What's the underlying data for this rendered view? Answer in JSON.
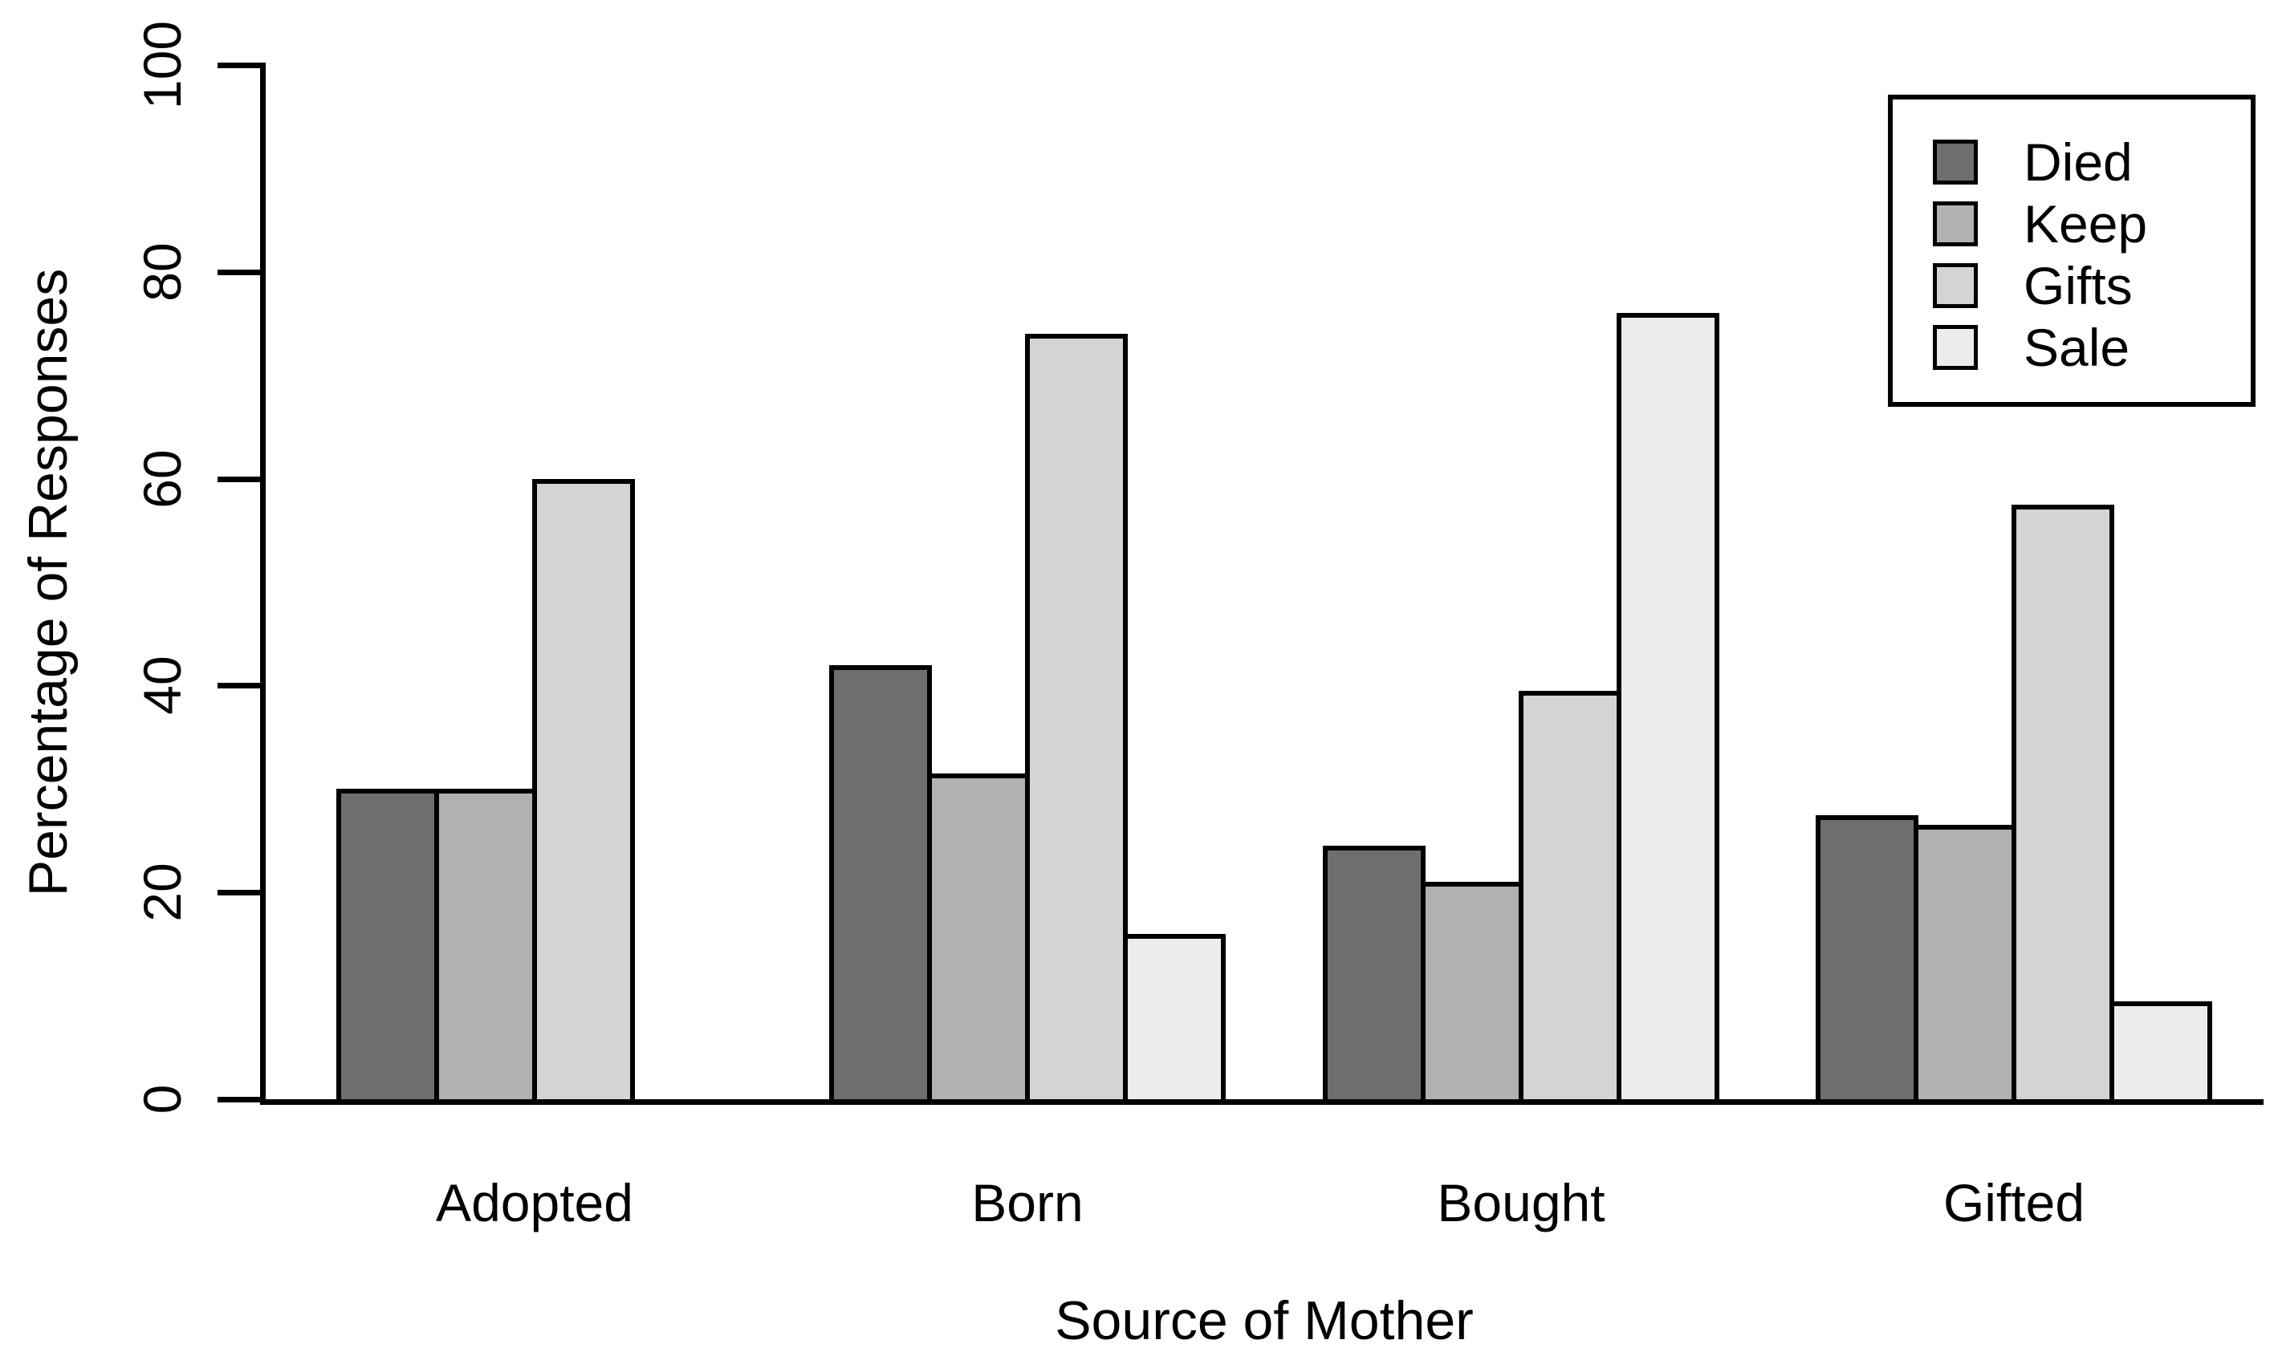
{
  "chart_data": {
    "type": "bar",
    "title": "",
    "categories": [
      "Adopted",
      "Born",
      "Bought",
      "Gifted"
    ],
    "series": [
      {
        "name": "Died",
        "color": "#6e6e6e",
        "values": [
          30,
          42,
          24.5,
          27.5
        ]
      },
      {
        "name": "Keep",
        "color": "#b1b1b1",
        "values": [
          30,
          31.5,
          21,
          26.5
        ]
      },
      {
        "name": "Gifts",
        "color": "#d4d4d4",
        "values": [
          60,
          74,
          39.5,
          57.5
        ]
      },
      {
        "name": "Sale",
        "color": "#ececec",
        "values": [
          0,
          16,
          76,
          9.5
        ]
      }
    ],
    "xlabel": "Source of Mother",
    "ylabel": "Percentage of Responses",
    "ylim": [
      0,
      100
    ],
    "yticks": [
      0,
      20,
      40,
      60,
      80,
      100
    ],
    "bar_border_color": "#000000",
    "axis_color": "#000000",
    "grid": false,
    "legend": {
      "position": "top-right",
      "items": [
        "Died",
        "Keep",
        "Gifts",
        "Sale"
      ]
    }
  }
}
